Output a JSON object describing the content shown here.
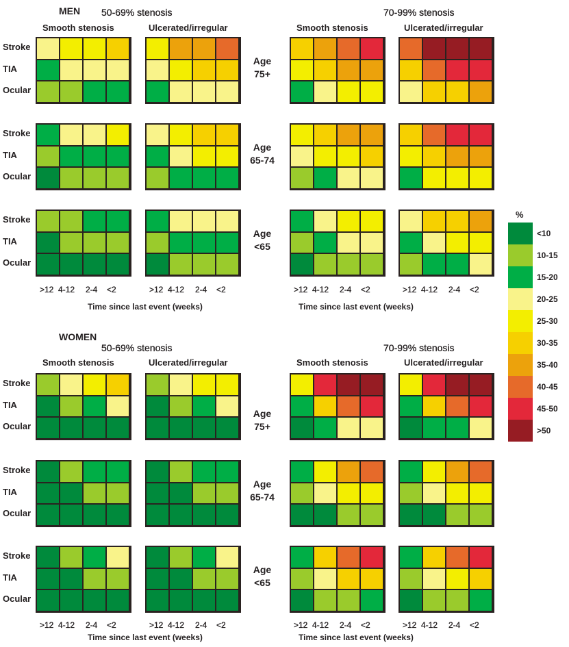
{
  "chart_data": {
    "type": "heatmap",
    "title": "",
    "legend": {
      "title": "%",
      "position": "right",
      "bins": [
        {
          "label": "<10",
          "color": "#008a3c"
        },
        {
          "label": "10-15",
          "color": "#9acb2c"
        },
        {
          "label": "15-20",
          "color": "#00ae46"
        },
        {
          "label": "20-25",
          "color": "#f9f38a"
        },
        {
          "label": "25-30",
          "color": "#f3ee00"
        },
        {
          "label": "30-35",
          "color": "#f6d000"
        },
        {
          "label": "35-40",
          "color": "#eca20c"
        },
        {
          "label": "40-45",
          "color": "#e66a2a"
        },
        {
          "label": "45-50",
          "color": "#e3283a"
        },
        {
          "label": ">50",
          "color": "#961c23"
        }
      ]
    },
    "rows": [
      "Stroke",
      "TIA",
      "Ocular"
    ],
    "columns": [
      ">12",
      "4-12",
      "2-4",
      "<2"
    ],
    "xlabel": "Time since last event (weeks)",
    "stenosis_groups": [
      "50-69% stenosis",
      "70-99% stenosis"
    ],
    "plaque_types": [
      "Smooth stenosis",
      "Ulcerated/irregular"
    ],
    "sexes": [
      {
        "label": "MEN",
        "ages": [
          {
            "label_line1": "Age",
            "label_line2": "75+",
            "panels": [
              [
                [
                  "20-25",
                  "25-30",
                  "25-30",
                  "30-35"
                ],
                [
                  "15-20",
                  "20-25",
                  "20-25",
                  "20-25"
                ],
                [
                  "10-15",
                  "10-15",
                  "15-20",
                  "15-20"
                ]
              ],
              [
                [
                  "25-30",
                  "35-40",
                  "35-40",
                  "40-45"
                ],
                [
                  "20-25",
                  "25-30",
                  "30-35",
                  "30-35"
                ],
                [
                  "15-20",
                  "20-25",
                  "20-25",
                  "20-25"
                ]
              ],
              [
                [
                  "30-35",
                  "35-40",
                  "40-45",
                  "45-50"
                ],
                [
                  "25-30",
                  "30-35",
                  "35-40",
                  "35-40"
                ],
                [
                  "15-20",
                  "20-25",
                  "25-30",
                  "25-30"
                ]
              ],
              [
                [
                  "40-45",
                  ">50",
                  ">50",
                  ">50"
                ],
                [
                  "30-35",
                  "40-45",
                  "45-50",
                  "45-50"
                ],
                [
                  "20-25",
                  "30-35",
                  "30-35",
                  "35-40"
                ]
              ]
            ]
          },
          {
            "label_line1": "Age",
            "label_line2": "65-74",
            "panels": [
              [
                [
                  "15-20",
                  "20-25",
                  "20-25",
                  "25-30"
                ],
                [
                  "10-15",
                  "15-20",
                  "15-20",
                  "15-20"
                ],
                [
                  "<10",
                  "10-15",
                  "10-15",
                  "10-15"
                ]
              ],
              [
                [
                  "20-25",
                  "25-30",
                  "30-35",
                  "30-35"
                ],
                [
                  "15-20",
                  "20-25",
                  "25-30",
                  "25-30"
                ],
                [
                  "10-15",
                  "15-20",
                  "15-20",
                  "15-20"
                ]
              ],
              [
                [
                  "25-30",
                  "30-35",
                  "35-40",
                  "35-40"
                ],
                [
                  "20-25",
                  "25-30",
                  "25-30",
                  "30-35"
                ],
                [
                  "10-15",
                  "15-20",
                  "20-25",
                  "20-25"
                ]
              ],
              [
                [
                  "30-35",
                  "40-45",
                  "45-50",
                  "45-50"
                ],
                [
                  "25-30",
                  "30-35",
                  "35-40",
                  "35-40"
                ],
                [
                  "15-20",
                  "25-30",
                  "25-30",
                  "25-30"
                ]
              ]
            ]
          },
          {
            "label_line1": "Age",
            "label_line2": "<65",
            "panels": [
              [
                [
                  "10-15",
                  "10-15",
                  "15-20",
                  "15-20"
                ],
                [
                  "<10",
                  "10-15",
                  "10-15",
                  "10-15"
                ],
                [
                  "<10",
                  "<10",
                  "<10",
                  "<10"
                ]
              ],
              [
                [
                  "15-20",
                  "20-25",
                  "20-25",
                  "20-25"
                ],
                [
                  "10-15",
                  "15-20",
                  "15-20",
                  "15-20"
                ],
                [
                  "<10",
                  "10-15",
                  "10-15",
                  "10-15"
                ]
              ],
              [
                [
                  "15-20",
                  "20-25",
                  "25-30",
                  "25-30"
                ],
                [
                  "10-15",
                  "15-20",
                  "20-25",
                  "20-25"
                ],
                [
                  "<10",
                  "10-15",
                  "10-15",
                  "10-15"
                ]
              ],
              [
                [
                  "20-25",
                  "30-35",
                  "30-35",
                  "35-40"
                ],
                [
                  "15-20",
                  "20-25",
                  "25-30",
                  "25-30"
                ],
                [
                  "10-15",
                  "15-20",
                  "15-20",
                  "20-25"
                ]
              ]
            ]
          }
        ]
      },
      {
        "label": "WOMEN",
        "ages": [
          {
            "label_line1": "Age",
            "label_line2": "75+",
            "panels": [
              [
                [
                  "10-15",
                  "20-25",
                  "25-30",
                  "30-35"
                ],
                [
                  "<10",
                  "10-15",
                  "15-20",
                  "20-25"
                ],
                [
                  "<10",
                  "<10",
                  "<10",
                  "<10"
                ]
              ],
              [
                [
                  "10-15",
                  "20-25",
                  "25-30",
                  "25-30"
                ],
                [
                  "<10",
                  "10-15",
                  "15-20",
                  "20-25"
                ],
                [
                  "<10",
                  "<10",
                  "<10",
                  "<10"
                ]
              ],
              [
                [
                  "25-30",
                  "45-50",
                  ">50",
                  ">50"
                ],
                [
                  "15-20",
                  "30-35",
                  "40-45",
                  "45-50"
                ],
                [
                  "<10",
                  "15-20",
                  "20-25",
                  "20-25"
                ]
              ],
              [
                [
                  "25-30",
                  "45-50",
                  ">50",
                  ">50"
                ],
                [
                  "15-20",
                  "30-35",
                  "40-45",
                  "45-50"
                ],
                [
                  "<10",
                  "15-20",
                  "15-20",
                  "20-25"
                ]
              ]
            ]
          },
          {
            "label_line1": "Age",
            "label_line2": "65-74",
            "panels": [
              [
                [
                  "<10",
                  "10-15",
                  "15-20",
                  "15-20"
                ],
                [
                  "<10",
                  "<10",
                  "10-15",
                  "10-15"
                ],
                [
                  "<10",
                  "<10",
                  "<10",
                  "<10"
                ]
              ],
              [
                [
                  "<10",
                  "10-15",
                  "15-20",
                  "15-20"
                ],
                [
                  "<10",
                  "<10",
                  "10-15",
                  "10-15"
                ],
                [
                  "<10",
                  "<10",
                  "<10",
                  "<10"
                ]
              ],
              [
                [
                  "15-20",
                  "25-30",
                  "35-40",
                  "40-45"
                ],
                [
                  "10-15",
                  "20-25",
                  "25-30",
                  "25-30"
                ],
                [
                  "<10",
                  "<10",
                  "10-15",
                  "10-15"
                ]
              ],
              [
                [
                  "15-20",
                  "25-30",
                  "35-40",
                  "40-45"
                ],
                [
                  "10-15",
                  "20-25",
                  "25-30",
                  "25-30"
                ],
                [
                  "<10",
                  "<10",
                  "10-15",
                  "10-15"
                ]
              ]
            ]
          },
          {
            "label_line1": "Age",
            "label_line2": "<65",
            "panels": [
              [
                [
                  "<10",
                  "10-15",
                  "15-20",
                  "20-25"
                ],
                [
                  "<10",
                  "<10",
                  "10-15",
                  "10-15"
                ],
                [
                  "<10",
                  "<10",
                  "<10",
                  "<10"
                ]
              ],
              [
                [
                  "<10",
                  "10-15",
                  "15-20",
                  "20-25"
                ],
                [
                  "<10",
                  "<10",
                  "10-15",
                  "10-15"
                ],
                [
                  "<10",
                  "<10",
                  "<10",
                  "<10"
                ]
              ],
              [
                [
                  "15-20",
                  "30-35",
                  "40-45",
                  "45-50"
                ],
                [
                  "10-15",
                  "20-25",
                  "30-35",
                  "30-35"
                ],
                [
                  "<10",
                  "10-15",
                  "10-15",
                  "15-20"
                ]
              ],
              [
                [
                  "15-20",
                  "30-35",
                  "40-45",
                  "45-50"
                ],
                [
                  "10-15",
                  "20-25",
                  "25-30",
                  "30-35"
                ],
                [
                  "<10",
                  "10-15",
                  "10-15",
                  "15-20"
                ]
              ]
            ]
          }
        ]
      }
    ]
  }
}
